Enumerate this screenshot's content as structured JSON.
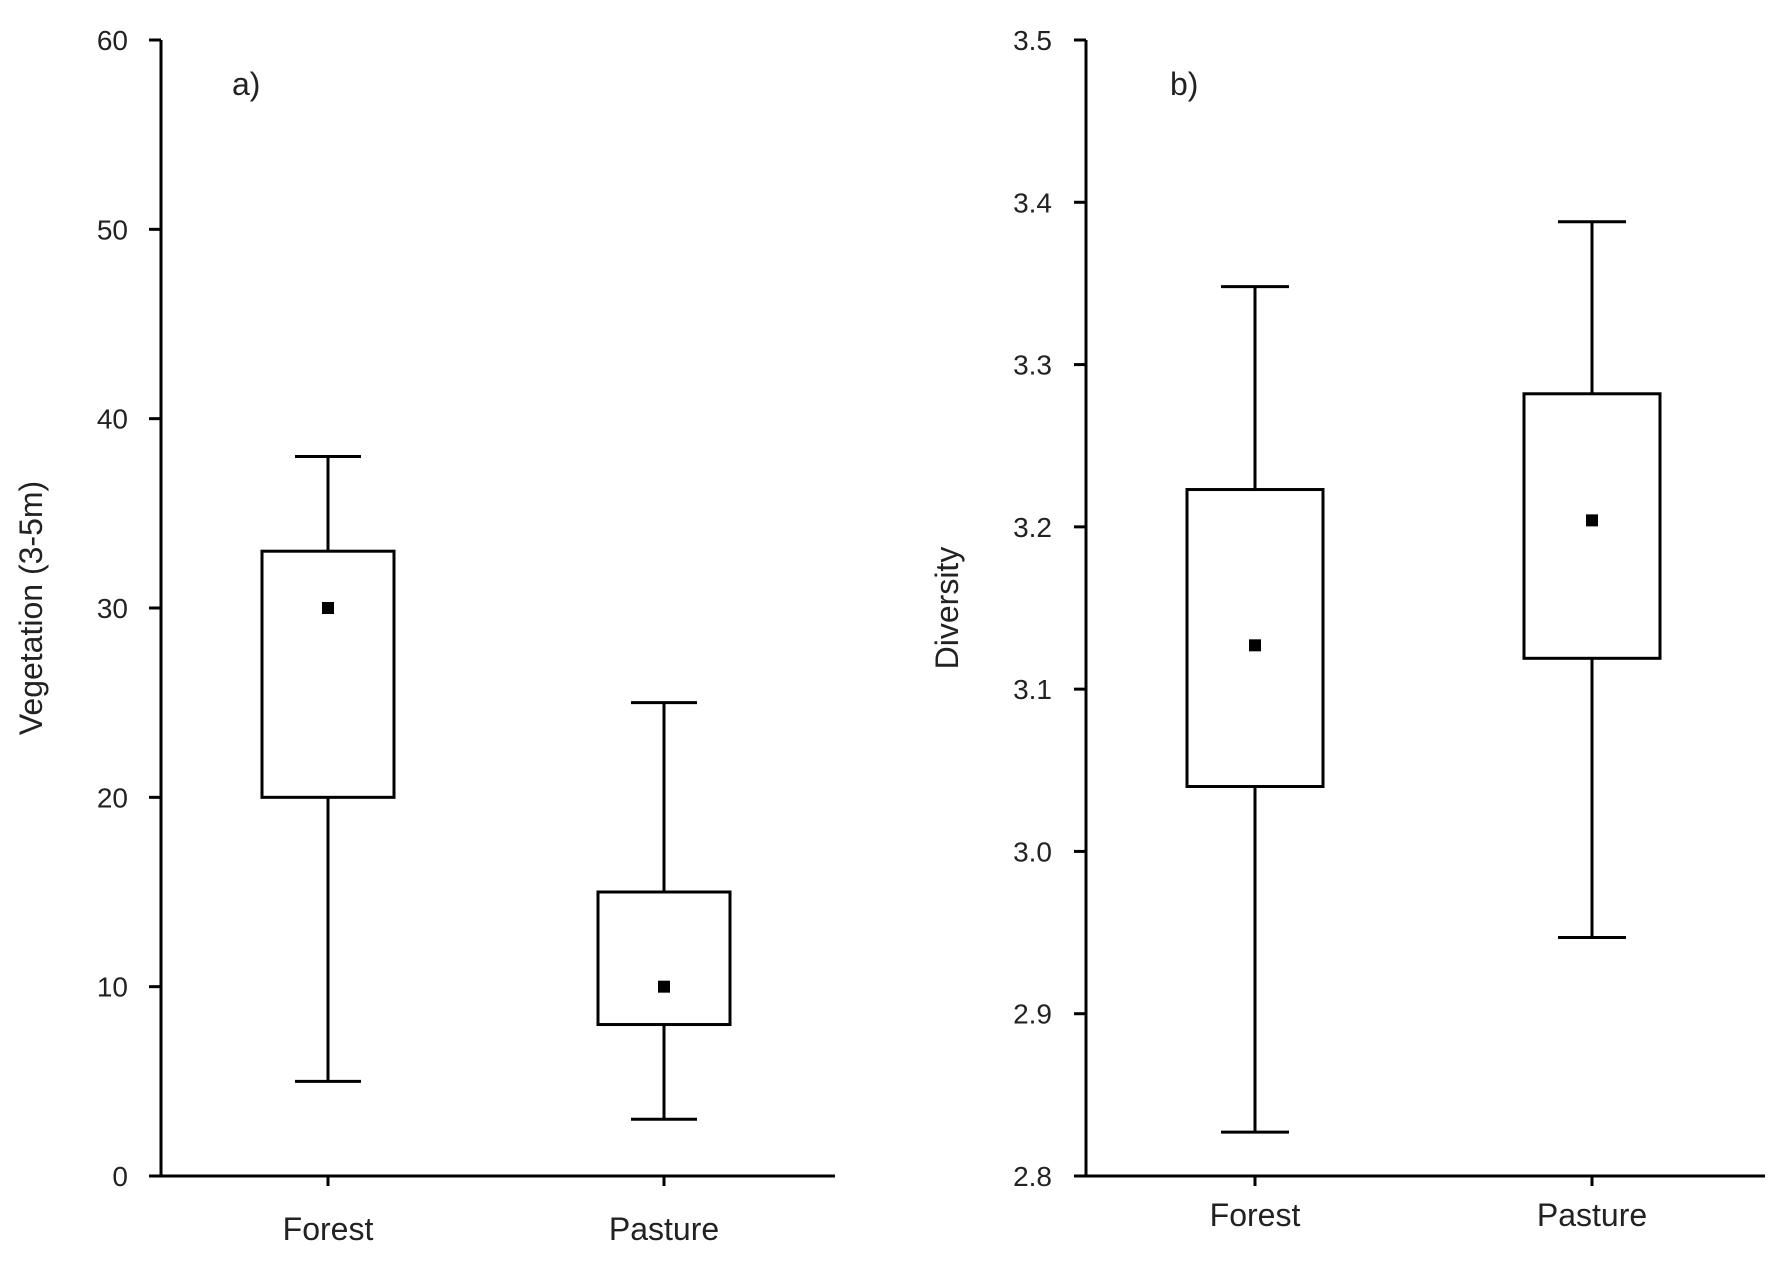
{
  "chart_data": [
    {
      "type": "box",
      "panel_label": "a)",
      "ylabel": "Vegetation (3-5m)",
      "ylim": [
        0,
        60
      ],
      "yticks": [
        0,
        10,
        20,
        30,
        40,
        50,
        60
      ],
      "ytick_labels": [
        "0",
        "10",
        "20",
        "30",
        "40",
        "50",
        "60"
      ],
      "categories": [
        "Forest",
        "Pasture"
      ],
      "boxes": [
        {
          "category": "Forest",
          "whisker_low": 5,
          "q1": 20,
          "q3": 33,
          "whisker_high": 38,
          "mean": 30
        },
        {
          "category": "Pasture",
          "whisker_low": 3,
          "q1": 8,
          "q3": 15,
          "whisker_high": 25,
          "mean": 10
        }
      ]
    },
    {
      "type": "box",
      "panel_label": "b)",
      "ylabel": "Diversity",
      "ylim": [
        2.8,
        3.5
      ],
      "yticks": [
        2.8,
        2.9,
        3.0,
        3.1,
        3.2,
        3.3,
        3.4,
        3.5
      ],
      "ytick_labels": [
        "2.8",
        "2.9",
        "3.0",
        "3.1",
        "3.2",
        "3.3",
        "3.4",
        "3.5"
      ],
      "categories": [
        "Forest",
        "Pasture"
      ],
      "boxes": [
        {
          "category": "Forest",
          "whisker_low": 2.827,
          "q1": 3.04,
          "q3": 3.223,
          "whisker_high": 3.348,
          "mean": 3.127
        },
        {
          "category": "Pasture",
          "whisker_low": 2.947,
          "q1": 3.119,
          "q3": 3.282,
          "whisker_high": 3.388,
          "mean": 3.204
        }
      ]
    }
  ]
}
